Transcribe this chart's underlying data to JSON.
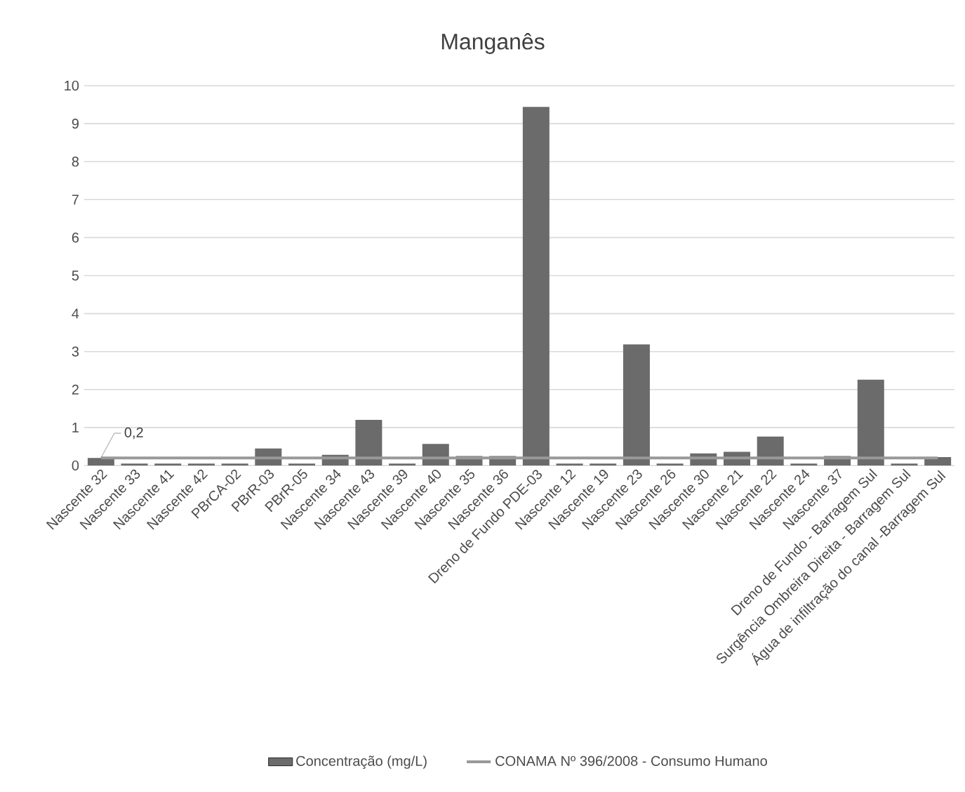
{
  "chart_data": {
    "type": "bar",
    "title": "Manganês",
    "categories": [
      "Nascente 32",
      "Nascente 33",
      "Nascente 41",
      "Nascente 42",
      "PBrCA-02",
      "PBrR-03",
      "PBrR-05",
      "Nascente 34",
      "Nascente 43",
      "Nascente 39",
      "Nascente 40",
      "Nascente 35",
      "Nascente 36",
      "Dreno de Fundo PDE-03",
      "Nascente 12",
      "Nascente 19",
      "Nascente 23",
      "Nascente 26",
      "Nascente 30",
      "Nascente 21",
      "Nascente 22",
      "Nascente 24",
      "Nascente 37",
      "Dreno de Fundo - Barragem Sul",
      "Surgência Ombreira Direita - Barragem Sul",
      "Água de infiltração do canal -Barragem Sul"
    ],
    "series": [
      {
        "name": "Concentração (mg/L)",
        "color": "#6b6b6b",
        "values": [
          0.2,
          0.05,
          0.05,
          0.05,
          0.05,
          0.45,
          0.05,
          0.28,
          1.2,
          0.05,
          0.57,
          0.25,
          0.25,
          9.44,
          0.05,
          0.05,
          3.19,
          0.05,
          0.32,
          0.36,
          0.76,
          0.05,
          0.25,
          2.26,
          0.05,
          0.22
        ]
      },
      {
        "name": "CONAMA Nº 396/2008 - Consumo Humano",
        "type": "line",
        "color": "#999999",
        "values": [
          0.2,
          0.2,
          0.2,
          0.2,
          0.2,
          0.2,
          0.2,
          0.2,
          0.2,
          0.2,
          0.2,
          0.2,
          0.2,
          0.2,
          0.2,
          0.2,
          0.2,
          0.2,
          0.2,
          0.2,
          0.2,
          0.2,
          0.2,
          0.2,
          0.2,
          0.2
        ]
      }
    ],
    "ylim": [
      0,
      10
    ],
    "yticks": [
      0,
      1,
      2,
      3,
      4,
      5,
      6,
      7,
      8,
      9,
      10
    ],
    "grid": "y",
    "legend": "bottom",
    "annotations": [
      {
        "text": "0,2",
        "x": "Nascente 32",
        "y": 0.2
      }
    ]
  }
}
